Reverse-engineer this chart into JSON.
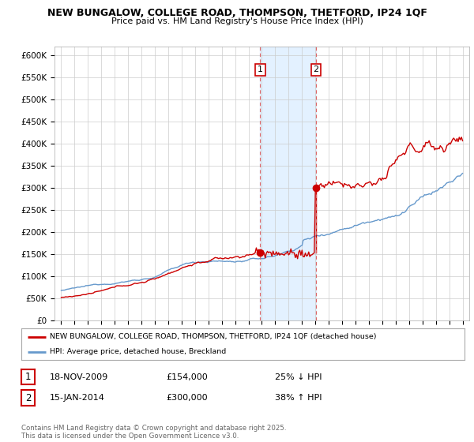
{
  "title": "NEW BUNGALOW, COLLEGE ROAD, THOMPSON, THETFORD, IP24 1QF",
  "subtitle": "Price paid vs. HM Land Registry's House Price Index (HPI)",
  "legend_line1": "NEW BUNGALOW, COLLEGE ROAD, THOMPSON, THETFORD, IP24 1QF (detached house)",
  "legend_line2": "HPI: Average price, detached house, Breckland",
  "footer": "Contains HM Land Registry data © Crown copyright and database right 2025.\nThis data is licensed under the Open Government Licence v3.0.",
  "sale1_date": "18-NOV-2009",
  "sale1_price": "£154,000",
  "sale1_hpi": "25% ↓ HPI",
  "sale2_date": "15-JAN-2014",
  "sale2_price": "£300,000",
  "sale2_hpi": "38% ↑ HPI",
  "sale1_x": 2009.88,
  "sale2_x": 2014.04,
  "sale1_y_red": 154000,
  "sale2_y_red": 300000,
  "xmin": 1994.5,
  "xmax": 2025.5,
  "ymin": 0,
  "ymax": 620000,
  "yticks": [
    0,
    50000,
    100000,
    150000,
    200000,
    250000,
    300000,
    350000,
    400000,
    450000,
    500000,
    550000,
    600000
  ],
  "red_color": "#cc0000",
  "blue_color": "#6699cc",
  "shade_color": "#ddeeff",
  "vline_color": "#dd6666",
  "background_color": "#ffffff",
  "plot_bg_color": "#ffffff",
  "grid_color": "#cccccc"
}
